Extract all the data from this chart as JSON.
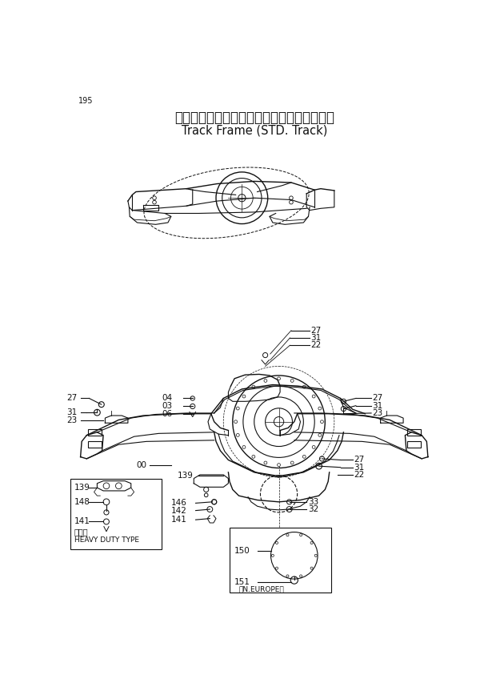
{
  "title_jp": "トラックフレーム（スタンダードトラック）",
  "title_en": "Track Frame (STD. Track)",
  "page_num": "195",
  "bg_color": "#ffffff",
  "line_color": "#111111",
  "title_fontsize": 12,
  "subtitle_fontsize": 10.5,
  "label_fontsize": 7.5,
  "small_fontsize": 7
}
